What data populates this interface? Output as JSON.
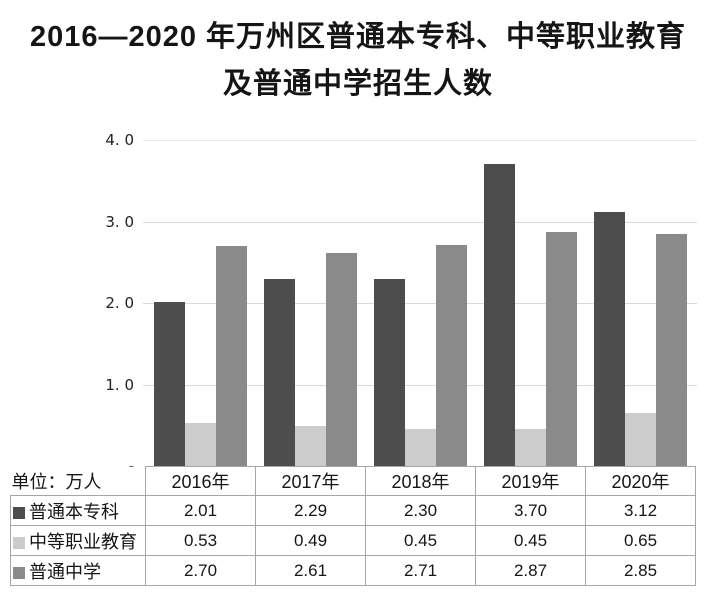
{
  "title": {
    "line1": "2016—2020 年万州区普通本专科、中等职业教育",
    "line2": "及普通中学招生人数"
  },
  "unit_label": "单位：万人",
  "chart_data": {
    "type": "bar",
    "title": "2016—2020年万州区普通本专科、中等职业教育及普通中学招生人数",
    "unit": "万人",
    "categories": [
      "2016年",
      "2017年",
      "2018年",
      "2019年",
      "2020年"
    ],
    "series": [
      {
        "name": "普通本专科",
        "color": "#4d4d4d",
        "values": [
          2.01,
          2.29,
          2.3,
          3.7,
          3.12
        ]
      },
      {
        "name": "中等职业教育",
        "color": "#cccccc",
        "values": [
          0.53,
          0.49,
          0.45,
          0.45,
          0.65
        ]
      },
      {
        "name": "普通中学",
        "color": "#8a8a8a",
        "values": [
          2.7,
          2.61,
          2.71,
          2.87,
          2.85
        ]
      }
    ],
    "xlabel": "",
    "ylabel": "",
    "ylim": [
      0,
      4.0
    ],
    "yticks": [
      {
        "value": 4,
        "label": "4. 0"
      },
      {
        "value": 3,
        "label": "3. 0"
      },
      {
        "value": 2,
        "label": "2. 0"
      },
      {
        "value": 1,
        "label": "1. 0"
      },
      {
        "value": 0,
        "label": "-"
      }
    ],
    "grid": true,
    "gridline_color": "#d9d9d9",
    "legend_position": "table-row-labels"
  },
  "table": {
    "header": [
      "2016年",
      "2017年",
      "2018年",
      "2019年",
      "2020年"
    ],
    "rows": [
      {
        "label": "普通本专科",
        "values": [
          "2.01",
          "2.29",
          "2.30",
          "3.70",
          "3.12"
        ]
      },
      {
        "label": "中等职业教育",
        "values": [
          "0.53",
          "0.49",
          "0.45",
          "0.45",
          "0.65"
        ]
      },
      {
        "label": "普通中学",
        "values": [
          "2.70",
          "2.61",
          "2.71",
          "2.87",
          "2.85"
        ]
      }
    ],
    "border_color": "#a6a6a6"
  }
}
